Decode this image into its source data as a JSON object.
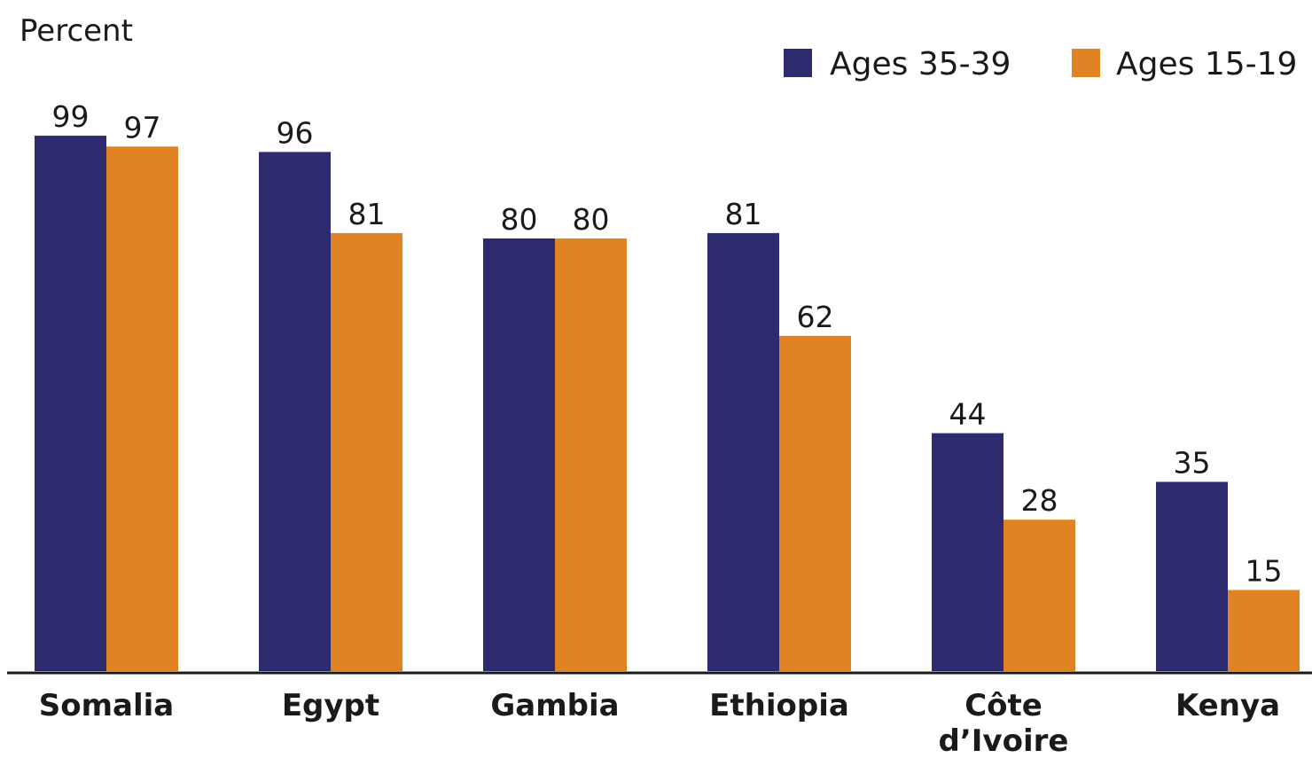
{
  "chart_data": {
    "type": "bar",
    "ylabel": "Percent",
    "xlabel": "",
    "title": "",
    "ylim": [
      0,
      100
    ],
    "grid": false,
    "legend_position": "top-right",
    "categories": [
      "Somalia",
      "Egypt",
      "Gambia",
      "Ethiopia",
      "Côte d’Ivoire",
      "Kenya"
    ],
    "category_lines": [
      [
        "Somalia"
      ],
      [
        "Egypt"
      ],
      [
        "Gambia"
      ],
      [
        "Ethiopia"
      ],
      [
        "Côte",
        "d’Ivoire"
      ],
      [
        "Kenya"
      ]
    ],
    "series": [
      {
        "name": "Ages 35-39",
        "color": "#2d2a6e",
        "values": [
          99,
          96,
          80,
          81,
          44,
          35
        ]
      },
      {
        "name": "Ages 15-19",
        "color": "#e08325",
        "values": [
          97,
          81,
          80,
          62,
          28,
          15
        ]
      }
    ]
  }
}
